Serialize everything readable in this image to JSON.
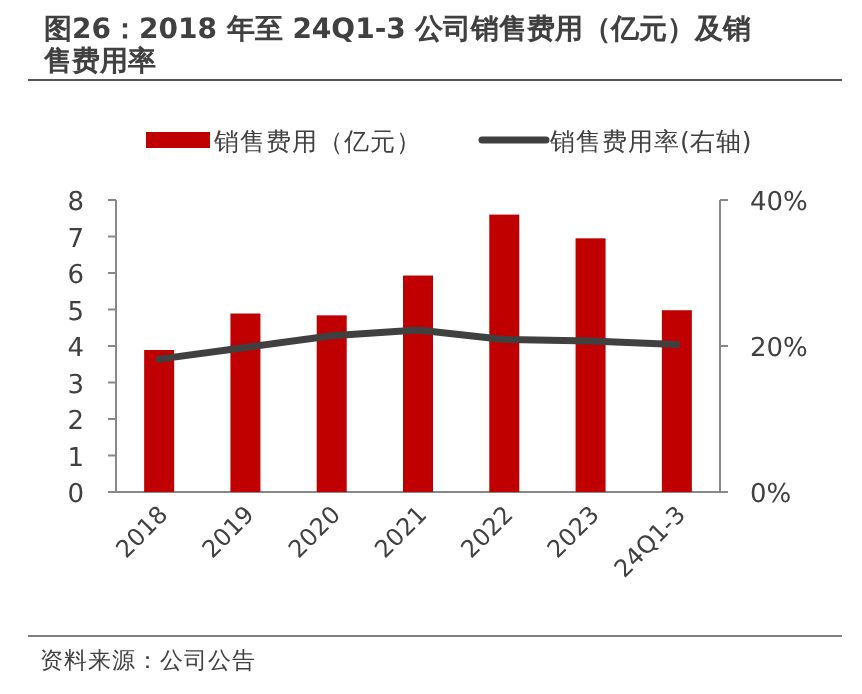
{
  "chart_data": {
    "type": "bar",
    "title": "图26：2018 年至 24Q1-3 公司销售费用（亿元）及销售费用率",
    "categories": [
      "2018",
      "2019",
      "2020",
      "2021",
      "2022",
      "2023",
      "24Q1-3"
    ],
    "series": [
      {
        "name": "销售费用（亿元）",
        "color": "#c00000",
        "values": [
          3.89,
          4.89,
          4.84,
          5.93,
          7.6,
          6.95,
          4.98
        ]
      },
      {
        "name": "销售费用率(右轴)",
        "type": "line",
        "axis": "y2",
        "color": "#404040",
        "values": [
          18.2,
          19.8,
          21.4,
          22.2,
          20.9,
          20.7,
          20.2
        ]
      }
    ],
    "ylim": [
      0,
      8
    ],
    "yticks": [
      0,
      1,
      2,
      3,
      4,
      5,
      6,
      7,
      8
    ],
    "y2lim": [
      0,
      40
    ],
    "y2ticks": [
      {
        "value": 0,
        "label": "0%"
      },
      {
        "value": 20,
        "label": "20%"
      },
      {
        "value": 40,
        "label": "40%"
      }
    ],
    "legend": "top",
    "grid": false,
    "annotations": [
      "资料来源：公司公告"
    ]
  }
}
